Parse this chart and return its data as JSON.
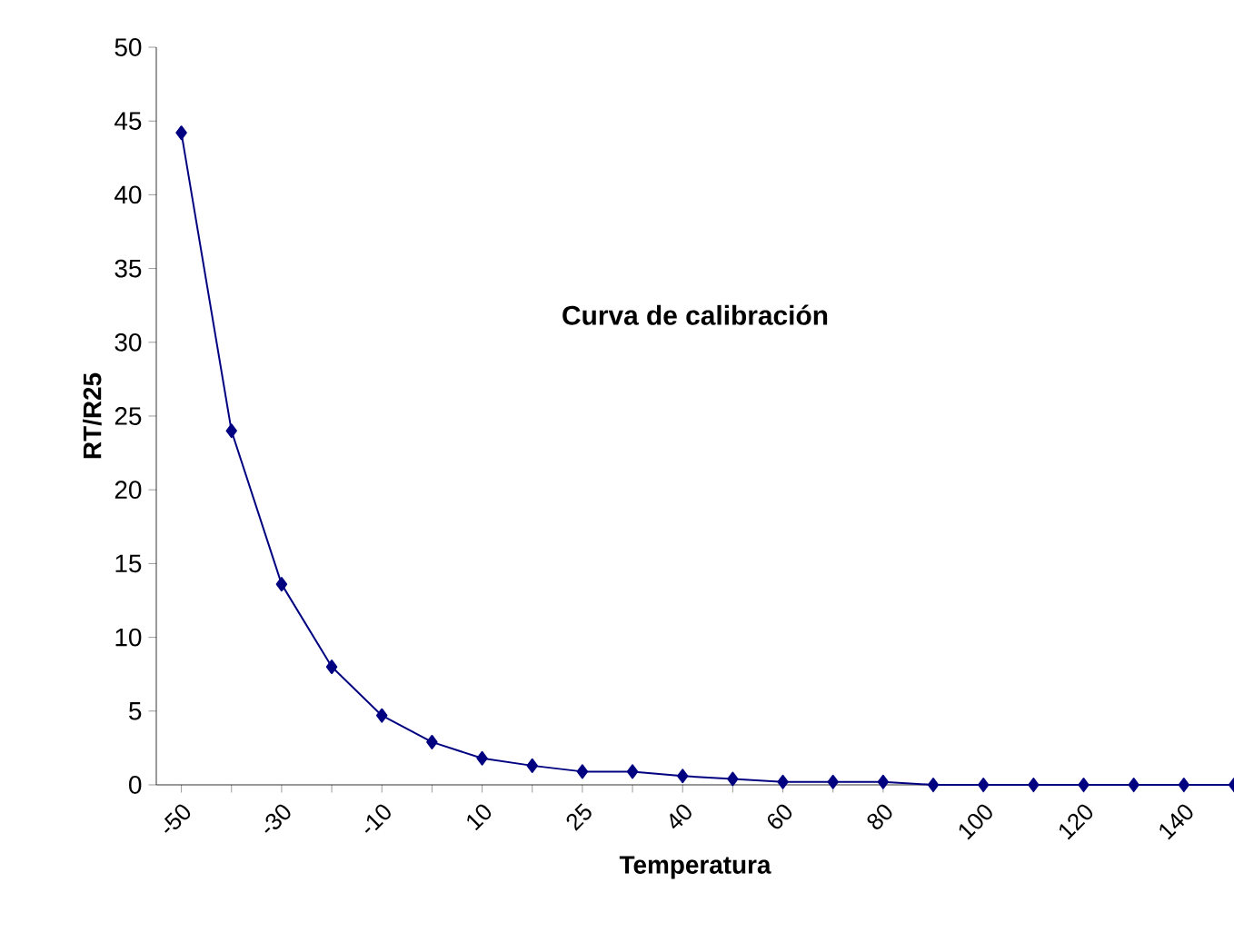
{
  "chart_data": {
    "type": "line",
    "title": "Curva de calibración",
    "xlabel": "Temperatura",
    "ylabel": "RT/R25",
    "categories": [
      "-50",
      null,
      "-30",
      null,
      "-10",
      null,
      "10",
      null,
      "25",
      null,
      "40",
      null,
      "60",
      null,
      "80",
      null,
      "100",
      null,
      "120",
      null,
      "140",
      null
    ],
    "series": [
      {
        "color": "#000080",
        "values": [
          44.2,
          24.0,
          13.6,
          8.0,
          4.7,
          2.9,
          1.8,
          1.3,
          0.9,
          0.9,
          0.6,
          0.4,
          0.2,
          0.2,
          0.2,
          0,
          0,
          0,
          0,
          0,
          0,
          0
        ]
      }
    ],
    "ylim": [
      0,
      50
    ],
    "yticks": [
      0,
      5,
      10,
      15,
      20,
      25,
      30,
      35,
      40,
      45,
      50
    ],
    "marker": "diamond",
    "line_style": "solid"
  }
}
